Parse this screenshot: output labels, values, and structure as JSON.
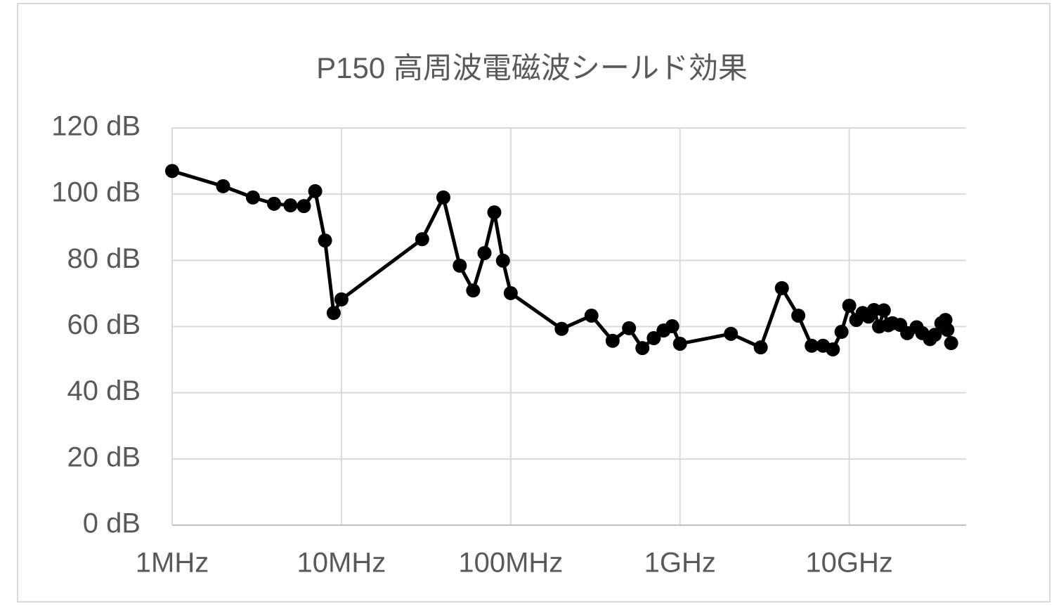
{
  "chart_data": {
    "type": "line",
    "title": "P150 高周波電磁波シールド効果",
    "x_scale": "log",
    "grid": true,
    "xlim": [
      1,
      50000
    ],
    "xticks": [
      {
        "value": 1,
        "label": "1MHz"
      },
      {
        "value": 10,
        "label": "10MHz"
      },
      {
        "value": 100,
        "label": "100MHz"
      },
      {
        "value": 1000,
        "label": "1GHz"
      },
      {
        "value": 10000,
        "label": "10GHz"
      }
    ],
    "ylim": [
      0,
      120
    ],
    "yticks": [
      {
        "value": 0,
        "label": "0 dB"
      },
      {
        "value": 20,
        "label": "20 dB"
      },
      {
        "value": 40,
        "label": "40 dB"
      },
      {
        "value": 60,
        "label": "60 dB"
      },
      {
        "value": 80,
        "label": "80 dB"
      },
      {
        "value": 100,
        "label": "100 dB"
      },
      {
        "value": 120,
        "label": "120 dB"
      }
    ],
    "series": [
      {
        "color": "#000000",
        "x": [
          1,
          2,
          3,
          4,
          5,
          6,
          7,
          8,
          9,
          10,
          30,
          40,
          50,
          60,
          70,
          80,
          90,
          100,
          200,
          300,
          400,
          500,
          600,
          700,
          800,
          900,
          1000,
          2000,
          3000,
          4000,
          5000,
          6000,
          7000,
          8000,
          9000,
          10000,
          11000,
          12000,
          13000,
          14000,
          15000,
          16000,
          17000,
          18000,
          20000,
          22000,
          25000,
          27000,
          30000,
          32000,
          35000,
          37000,
          38000,
          40000
        ],
        "values": [
          107.0,
          102.4,
          99.0,
          97.1,
          96.6,
          96.4,
          100.9,
          86.0,
          64.1,
          68.2,
          86.4,
          99.0,
          78.4,
          70.9,
          82.2,
          94.5,
          79.9,
          70.1,
          59.3,
          63.3,
          55.7,
          59.5,
          53.5,
          56.5,
          58.8,
          60.1,
          54.8,
          57.8,
          53.7,
          71.6,
          63.3,
          54.2,
          54.2,
          53.1,
          58.4,
          66.3,
          62.0,
          64.1,
          63.0,
          65.0,
          60.0,
          64.9,
          60.4,
          61.0,
          60.5,
          58.0,
          59.8,
          58.0,
          56.2,
          57.5,
          61.0,
          62.0,
          59.0,
          55.0
        ]
      }
    ]
  }
}
